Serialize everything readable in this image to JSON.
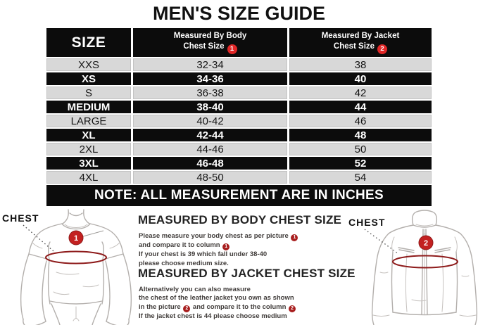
{
  "title": "MEN'S SIZE GUIDE",
  "table": {
    "header": {
      "size_label": "SIZE",
      "body_col_line1": "Measured By Body",
      "body_col_line2": "Chest Size",
      "body_col_badge": "1",
      "jacket_col_line1": "Measured By Jacket",
      "jacket_col_line2": "Chest Size",
      "jacket_col_badge": "2"
    },
    "rows": [
      {
        "size": "XXS",
        "body_chest": "32-34",
        "jacket_chest": "38",
        "variant": "light"
      },
      {
        "size": "XS",
        "body_chest": "34-36",
        "jacket_chest": "40",
        "variant": "dark"
      },
      {
        "size": "S",
        "body_chest": "36-38",
        "jacket_chest": "42",
        "variant": "light"
      },
      {
        "size": "MEDIUM",
        "body_chest": "38-40",
        "jacket_chest": "44",
        "variant": "dark"
      },
      {
        "size": "LARGE",
        "body_chest": "40-42",
        "jacket_chest": "46",
        "variant": "light"
      },
      {
        "size": "XL",
        "body_chest": "42-44",
        "jacket_chest": "48",
        "variant": "dark"
      },
      {
        "size": "2XL",
        "body_chest": "44-46",
        "jacket_chest": "50",
        "variant": "light"
      },
      {
        "size": "3XL",
        "body_chest": "46-48",
        "jacket_chest": "52",
        "variant": "dark"
      },
      {
        "size": "4XL",
        "body_chest": "48-50",
        "jacket_chest": "54",
        "variant": "light"
      }
    ],
    "note": "NOTE: ALL MEASUREMENT ARE IN INCHES"
  },
  "sections": {
    "body_measure": {
      "heading": "MEASURED BY BODY CHEST SIZE",
      "lines": [
        [
          {
            "t": "Please measure your body chest as per picture "
          },
          {
            "badge": "1"
          }
        ],
        [
          {
            "t": "and compare it to column "
          },
          {
            "badge": "1"
          }
        ],
        [
          {
            "t": "If your chest is 39 which fall under 38-40"
          }
        ],
        [
          {
            "t": "please choose medium size."
          }
        ]
      ]
    },
    "jacket_measure": {
      "heading": "MEASURED BY JACKET CHEST SIZE",
      "lines": [
        [
          {
            "t": "Alternatively you can also measure"
          }
        ],
        [
          {
            "t": "the chest of the leather jacket you own as shown"
          }
        ],
        [
          {
            "t": "in the picture "
          },
          {
            "badge": "2"
          },
          {
            "t": " and compare it to the column "
          },
          {
            "badge": "2"
          }
        ],
        [
          {
            "t": "If the jacket chest is 44 please choose medium"
          }
        ]
      ]
    }
  },
  "illustrations": {
    "tshirt": {
      "label": "CHEST",
      "badge": "1"
    },
    "jacket": {
      "label": "CHEST",
      "badge": "2"
    }
  },
  "colors": {
    "table_black": "#0c0c0c",
    "row_light_gray": "#d8d8d8",
    "header_badge_red": "#e12727",
    "annotation_badge_red": "#a81e1e",
    "measure_line_red": "#8e1b1b",
    "sketch_gray": "#b3afac"
  }
}
